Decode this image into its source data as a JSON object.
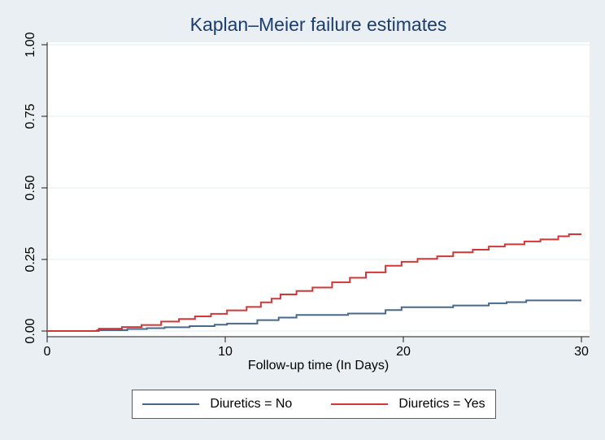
{
  "window": {
    "background_color": "#e9eff2",
    "plot_background_color": "#ffffff"
  },
  "colors": {
    "title": "#1c3d6e",
    "axis_line": "#1a1a1a",
    "tick_label": "#000000",
    "gridline": "#e2ebee",
    "legend_border": "#5a5a5a",
    "series_no": "#47698c",
    "series_yes": "#d23737"
  },
  "chart_data": {
    "type": "line",
    "subtype": "step",
    "title": "Kaplan–Meier failure estimates",
    "xlabel": "Follow-up time (In Days)",
    "ylabel": "",
    "xlim": [
      0,
      30
    ],
    "ylim": [
      0,
      1
    ],
    "grid": "horizontal",
    "legend_position": "bottom",
    "xticks": [
      {
        "value": 0,
        "label": "0"
      },
      {
        "value": 10,
        "label": "10"
      },
      {
        "value": 20,
        "label": "20"
      },
      {
        "value": 30,
        "label": "30"
      }
    ],
    "yticks": [
      {
        "value": 0.0,
        "label": "0.00"
      },
      {
        "value": 0.25,
        "label": "0.25"
      },
      {
        "value": 0.5,
        "label": "0.50"
      },
      {
        "value": 0.75,
        "label": "0.75"
      },
      {
        "value": 1.0,
        "label": "1.00"
      }
    ],
    "series": [
      {
        "name": "Diuretics = No",
        "color": "#47698c",
        "points": [
          [
            0,
            0
          ],
          [
            2.8,
            0.003
          ],
          [
            4.5,
            0.007
          ],
          [
            5.6,
            0.01
          ],
          [
            6.6,
            0.013
          ],
          [
            8.0,
            0.017
          ],
          [
            9.4,
            0.022
          ],
          [
            10.1,
            0.026
          ],
          [
            11.8,
            0.038
          ],
          [
            13.0,
            0.047
          ],
          [
            14.0,
            0.056
          ],
          [
            16.9,
            0.061
          ],
          [
            19.0,
            0.073
          ],
          [
            19.9,
            0.083
          ],
          [
            22.8,
            0.089
          ],
          [
            24.8,
            0.097
          ],
          [
            25.8,
            0.101
          ],
          [
            26.9,
            0.107
          ],
          [
            30,
            0.107
          ]
        ]
      },
      {
        "name": "Diuretics = Yes",
        "color": "#d23737",
        "points": [
          [
            0,
            0
          ],
          [
            2.9,
            0.008
          ],
          [
            4.2,
            0.014
          ],
          [
            5.3,
            0.021
          ],
          [
            6.4,
            0.033
          ],
          [
            7.4,
            0.042
          ],
          [
            8.3,
            0.051
          ],
          [
            9.2,
            0.06
          ],
          [
            10.1,
            0.072
          ],
          [
            11.2,
            0.084
          ],
          [
            12.0,
            0.1
          ],
          [
            12.6,
            0.113
          ],
          [
            13.1,
            0.128
          ],
          [
            14.0,
            0.14
          ],
          [
            14.9,
            0.152
          ],
          [
            16.0,
            0.17
          ],
          [
            17.0,
            0.186
          ],
          [
            17.9,
            0.205
          ],
          [
            19.0,
            0.228
          ],
          [
            19.9,
            0.242
          ],
          [
            20.8,
            0.252
          ],
          [
            21.9,
            0.261
          ],
          [
            22.8,
            0.275
          ],
          [
            23.9,
            0.284
          ],
          [
            24.8,
            0.295
          ],
          [
            25.7,
            0.303
          ],
          [
            26.8,
            0.313
          ],
          [
            27.7,
            0.32
          ],
          [
            28.7,
            0.331
          ],
          [
            29.3,
            0.338
          ],
          [
            30,
            0.338
          ]
        ]
      }
    ]
  },
  "legend": {
    "items": [
      {
        "label": "Diuretics = No"
      },
      {
        "label": "Diuretics = Yes"
      }
    ]
  }
}
